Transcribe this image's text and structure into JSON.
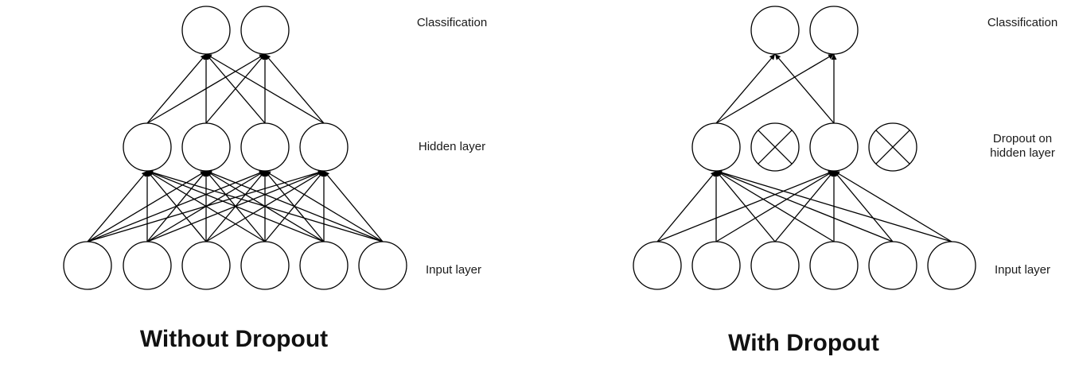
{
  "left_panel": {
    "caption": "Without Dropout",
    "labels": {
      "output": "Classification",
      "hidden": "Hidden layer",
      "input": "Input layer"
    },
    "dropped_hidden": []
  },
  "right_panel": {
    "caption": "With Dropout",
    "labels": {
      "output": "Classification",
      "hidden": "Dropout on\nhidden layer",
      "input": "Input layer"
    },
    "dropped_hidden": [
      1,
      3
    ],
    "active_input_to_hidden": [
      [
        0,
        0
      ],
      [
        0,
        2
      ],
      [
        1,
        0
      ],
      [
        1,
        2
      ],
      [
        2,
        0
      ],
      [
        2,
        2
      ],
      [
        3,
        0
      ],
      [
        3,
        2
      ],
      [
        4,
        0
      ],
      [
        4,
        2
      ],
      [
        5,
        0
      ],
      [
        5,
        2
      ]
    ],
    "active_hidden_to_output": [
      [
        0,
        0
      ],
      [
        0,
        1
      ],
      [
        2,
        0
      ],
      [
        2,
        1
      ]
    ]
  },
  "layers": {
    "input_nodes": 6,
    "hidden_nodes": 4,
    "output_nodes": 2
  },
  "colors": {
    "line": "#000000",
    "node_fill": "#ffffff",
    "text": "#1a1a1a"
  }
}
